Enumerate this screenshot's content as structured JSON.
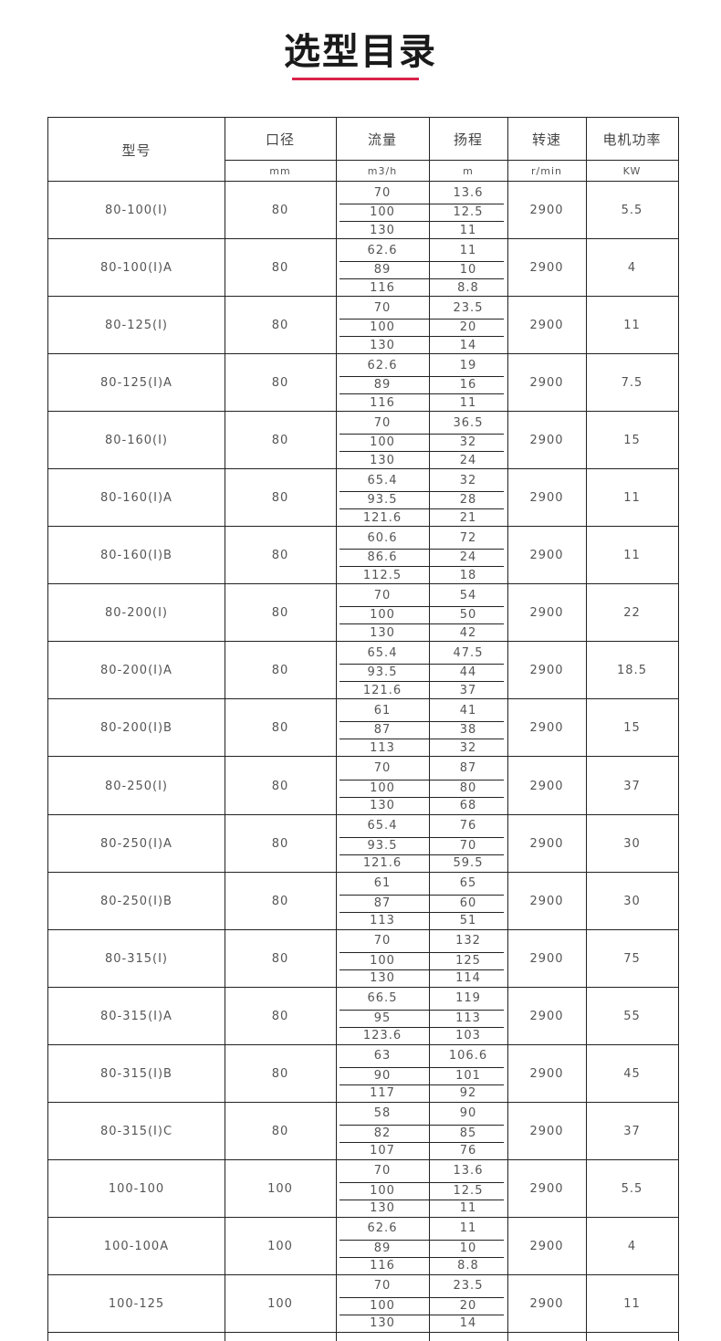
{
  "title": "选型目录",
  "accent_color": "#d9234a",
  "table": {
    "headers": [
      "型号",
      "口径",
      "流量",
      "扬程",
      "转速",
      "电机功率"
    ],
    "units": [
      "mm",
      "m3/h",
      "m",
      "r/min",
      "KW"
    ],
    "rows": [
      {
        "model": "80-100(I)",
        "diameter": "80",
        "flow": [
          "70",
          "100",
          "130"
        ],
        "head": [
          "13.6",
          "12.5",
          "11"
        ],
        "speed": "2900",
        "power": "5.5"
      },
      {
        "model": "80-100(I)A",
        "diameter": "80",
        "flow": [
          "62.6",
          "89",
          "116"
        ],
        "head": [
          "11",
          "10",
          "8.8"
        ],
        "speed": "2900",
        "power": "4"
      },
      {
        "model": "80-125(I)",
        "diameter": "80",
        "flow": [
          "70",
          "100",
          "130"
        ],
        "head": [
          "23.5",
          "20",
          "14"
        ],
        "speed": "2900",
        "power": "11"
      },
      {
        "model": "80-125(I)A",
        "diameter": "80",
        "flow": [
          "62.6",
          "89",
          "116"
        ],
        "head": [
          "19",
          "16",
          "11"
        ],
        "speed": "2900",
        "power": "7.5"
      },
      {
        "model": "80-160(I)",
        "diameter": "80",
        "flow": [
          "70",
          "100",
          "130"
        ],
        "head": [
          "36.5",
          "32",
          "24"
        ],
        "speed": "2900",
        "power": "15"
      },
      {
        "model": "80-160(I)A",
        "diameter": "80",
        "flow": [
          "65.4",
          "93.5",
          "121.6"
        ],
        "head": [
          "32",
          "28",
          "21"
        ],
        "speed": "2900",
        "power": "11"
      },
      {
        "model": "80-160(I)B",
        "diameter": "80",
        "flow": [
          "60.6",
          "86.6",
          "112.5"
        ],
        "head": [
          "72",
          "24",
          "18"
        ],
        "speed": "2900",
        "power": "11"
      },
      {
        "model": "80-200(I)",
        "diameter": "80",
        "flow": [
          "70",
          "100",
          "130"
        ],
        "head": [
          "54",
          "50",
          "42"
        ],
        "speed": "2900",
        "power": "22"
      },
      {
        "model": "80-200(I)A",
        "diameter": "80",
        "flow": [
          "65.4",
          "93.5",
          "121.6"
        ],
        "head": [
          "47.5",
          "44",
          "37"
        ],
        "speed": "2900",
        "power": "18.5"
      },
      {
        "model": "80-200(I)B",
        "diameter": "80",
        "flow": [
          "61",
          "87",
          "113"
        ],
        "head": [
          "41",
          "38",
          "32"
        ],
        "speed": "2900",
        "power": "15"
      },
      {
        "model": "80-250(I)",
        "diameter": "80",
        "flow": [
          "70",
          "100",
          "130"
        ],
        "head": [
          "87",
          "80",
          "68"
        ],
        "speed": "2900",
        "power": "37"
      },
      {
        "model": "80-250(I)A",
        "diameter": "80",
        "flow": [
          "65.4",
          "93.5",
          "121.6"
        ],
        "head": [
          "76",
          "70",
          "59.5"
        ],
        "speed": "2900",
        "power": "30"
      },
      {
        "model": "80-250(I)B",
        "diameter": "80",
        "flow": [
          "61",
          "87",
          "113"
        ],
        "head": [
          "65",
          "60",
          "51"
        ],
        "speed": "2900",
        "power": "30"
      },
      {
        "model": "80-315(I)",
        "diameter": "80",
        "flow": [
          "70",
          "100",
          "130"
        ],
        "head": [
          "132",
          "125",
          "114"
        ],
        "speed": "2900",
        "power": "75"
      },
      {
        "model": "80-315(I)A",
        "diameter": "80",
        "flow": [
          "66.5",
          "95",
          "123.6"
        ],
        "head": [
          "119",
          "113",
          "103"
        ],
        "speed": "2900",
        "power": "55"
      },
      {
        "model": "80-315(I)B",
        "diameter": "80",
        "flow": [
          "63",
          "90",
          "117"
        ],
        "head": [
          "106.6",
          "101",
          "92"
        ],
        "speed": "2900",
        "power": "45"
      },
      {
        "model": "80-315(I)C",
        "diameter": "80",
        "flow": [
          "58",
          "82",
          "107"
        ],
        "head": [
          "90",
          "85",
          "76"
        ],
        "speed": "2900",
        "power": "37"
      },
      {
        "model": "100-100",
        "diameter": "100",
        "flow": [
          "70",
          "100",
          "130"
        ],
        "head": [
          "13.6",
          "12.5",
          "11"
        ],
        "speed": "2900",
        "power": "5.5"
      },
      {
        "model": "100-100A",
        "diameter": "100",
        "flow": [
          "62.6",
          "89",
          "116"
        ],
        "head": [
          "11",
          "10",
          "8.8"
        ],
        "speed": "2900",
        "power": "4"
      },
      {
        "model": "100-125",
        "diameter": "100",
        "flow": [
          "70",
          "100",
          "130"
        ],
        "head": [
          "23.5",
          "20",
          "14"
        ],
        "speed": "2900",
        "power": "11"
      }
    ]
  }
}
